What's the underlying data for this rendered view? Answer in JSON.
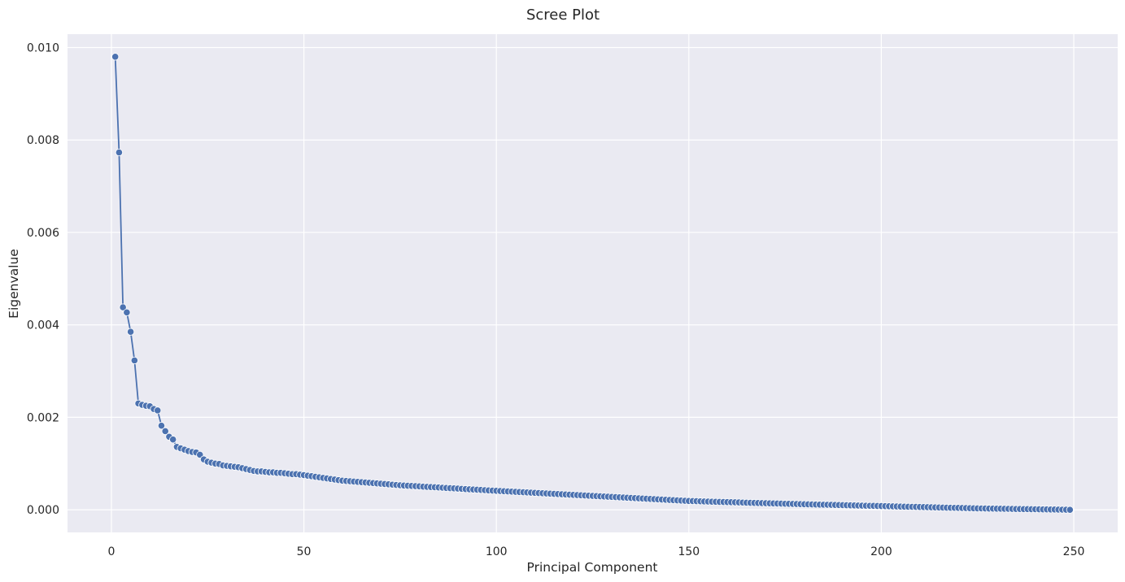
{
  "chart_data": {
    "type": "line",
    "title": "Scree Plot",
    "xlabel": "Principal Component",
    "ylabel": "Eigenvalue",
    "xlim": [
      -11.4,
      261.4
    ],
    "ylim": [
      -0.00049,
      0.01029
    ],
    "xticks": [
      0,
      50,
      100,
      150,
      200,
      250
    ],
    "xtick_labels": [
      "0",
      "50",
      "100",
      "150",
      "200",
      "250"
    ],
    "yticks": [
      0.0,
      0.002,
      0.004,
      0.006,
      0.008,
      0.01
    ],
    "ytick_labels": [
      "0.000",
      "0.002",
      "0.004",
      "0.006",
      "0.008",
      "0.010"
    ],
    "grid": true,
    "line_color": "#4c72b0",
    "background_color": "#eaeaf2",
    "marker": "circle",
    "series": [
      {
        "x_start": 1,
        "x_end": 249,
        "values_head": [
          0.0098,
          0.00773,
          0.00438,
          0.00427,
          0.00385,
          0.00323,
          0.0023,
          0.00227,
          0.00225,
          0.00224,
          0.00218,
          0.00215,
          0.00182,
          0.0017,
          0.00158,
          0.00152,
          0.00136,
          0.00133,
          0.0013,
          0.00127,
          0.00125,
          0.00124,
          0.00119,
          0.00109,
          0.00104,
          0.00102,
          0.001,
          0.00099,
          0.00096,
          0.00095,
          0.00094,
          0.00093,
          0.00092,
          0.0009,
          0.00088,
          0.00086,
          0.00084,
          0.00083,
          0.00083,
          0.00082,
          0.00081,
          0.00081,
          0.0008,
          0.0008,
          0.00079,
          0.00078,
          0.00077,
          0.00077,
          0.00076,
          0.00075
        ],
        "tail_anchors": [
          [
            50,
            0.00075
          ],
          [
            60,
            0.00063
          ],
          [
            75,
            0.00053
          ],
          [
            100,
            0.00041
          ],
          [
            125,
            0.0003
          ],
          [
            150,
            0.00019
          ],
          [
            175,
            0.00013
          ],
          [
            200,
            8e-05
          ],
          [
            225,
            3e-05
          ],
          [
            249,
            0.0
          ]
        ]
      }
    ]
  }
}
